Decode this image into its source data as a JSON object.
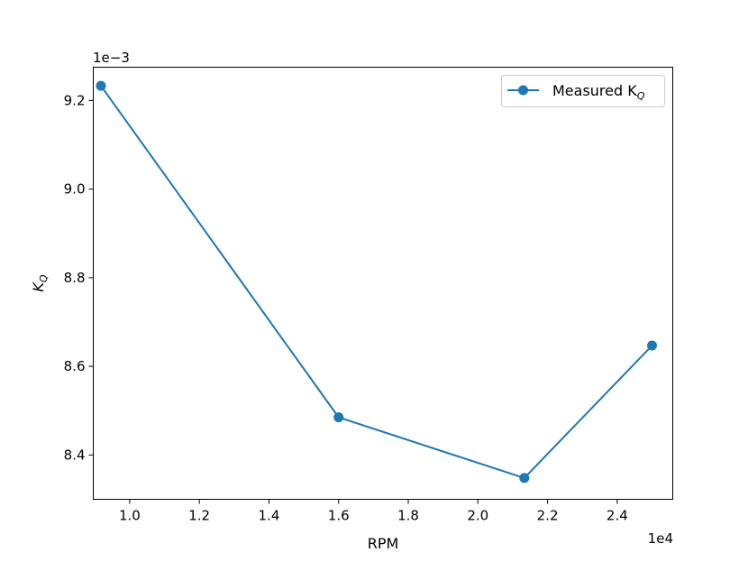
{
  "chart_data": {
    "type": "line",
    "xlabel": "RPM",
    "ylabel": "K",
    "ylabel_sub": "Q",
    "x_multiplier": "1e4",
    "y_multiplier": "1e−3",
    "xlim": [
      0.8955,
      2.5595
    ],
    "ylim": [
      8.3,
      9.275
    ],
    "x_ticks": [
      1.0,
      1.2,
      1.4,
      1.6,
      1.8,
      2.0,
      2.2,
      2.4
    ],
    "x_tick_labels": [
      "1.0",
      "1.2",
      "1.4",
      "1.6",
      "1.8",
      "2.0",
      "2.2",
      "2.4"
    ],
    "y_ticks": [
      8.4,
      8.6,
      8.8,
      9.0,
      9.2
    ],
    "y_tick_labels": [
      "8.4",
      "8.6",
      "8.8",
      "9.0",
      "9.2"
    ],
    "grid": false,
    "legend_position": "top-right",
    "series": [
      {
        "name": "Measured K",
        "name_sub": "Q",
        "color": "#1f77b4",
        "marker": "circle",
        "x": [
          0.9175,
          1.6,
          2.1333,
          2.5
        ],
        "y": [
          9.233,
          8.485,
          8.348,
          8.647
        ]
      }
    ]
  }
}
